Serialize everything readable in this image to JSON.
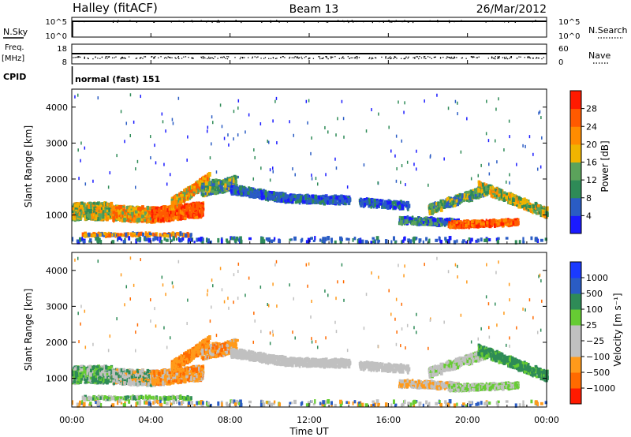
{
  "header": {
    "station": "Halley (fitACF)",
    "beam": "Beam 13",
    "date": "26/Mar/2012"
  },
  "panels": {
    "nsky_label": "N.Sky",
    "nsearch_label": "N.Search",
    "noise_ticks": [
      "10^5",
      "10^0"
    ],
    "freq_label": "Freq.",
    "freq_unit": "[MHz]",
    "freq_ticks": [
      "18",
      "8"
    ],
    "nave_label": "Nave",
    "nave_ticks": [
      "60",
      "0"
    ],
    "cpid_label": "CPID",
    "cpid_value": "normal (fast) 151"
  },
  "colors": {
    "power_scale": [
      "#1a1aff",
      "#2a5cc4",
      "#2e8b57",
      "#5ba35b",
      "#f0b400",
      "#ff8c00",
      "#ff5a00",
      "#ff1a00"
    ],
    "velocity_scale": [
      "#ff1a00",
      "#ff6a00",
      "#ff9a1a",
      "#c0c0c0",
      "#c0c0c0",
      "#66cc33",
      "#2e8b57",
      "#2a5cc4",
      "#1a3aff"
    ]
  },
  "chart_data": [
    {
      "type": "heatmap",
      "name": "power",
      "ylabel": "Slant Range [km]",
      "yticks": [
        1000,
        2000,
        3000,
        4000
      ],
      "ylim": [
        200,
        4500
      ],
      "colorbar_label": "Power [dB]",
      "colorbar_ticks": [
        4,
        8,
        12,
        16,
        20,
        24,
        28
      ],
      "colorbar_range": [
        0,
        32
      ],
      "grid": false
    },
    {
      "type": "heatmap",
      "name": "velocity",
      "ylabel": "Slant Range [km]",
      "yticks": [
        1000,
        2000,
        3000,
        4000
      ],
      "ylim": [
        200,
        4500
      ],
      "colorbar_label": "Velocity [m s⁻¹]",
      "colorbar_ticks": [
        "1000",
        "500",
        "100",
        "25",
        "−25",
        "−100",
        "−500",
        "−1000"
      ],
      "grid": false
    },
    {
      "type": "line",
      "name": "time_axis",
      "xlabel": "Time UT",
      "xticks": [
        "00:00",
        "04:00",
        "08:00",
        "12:00",
        "16:00",
        "20:00",
        "00:00"
      ],
      "xlim": [
        0,
        24
      ]
    }
  ]
}
